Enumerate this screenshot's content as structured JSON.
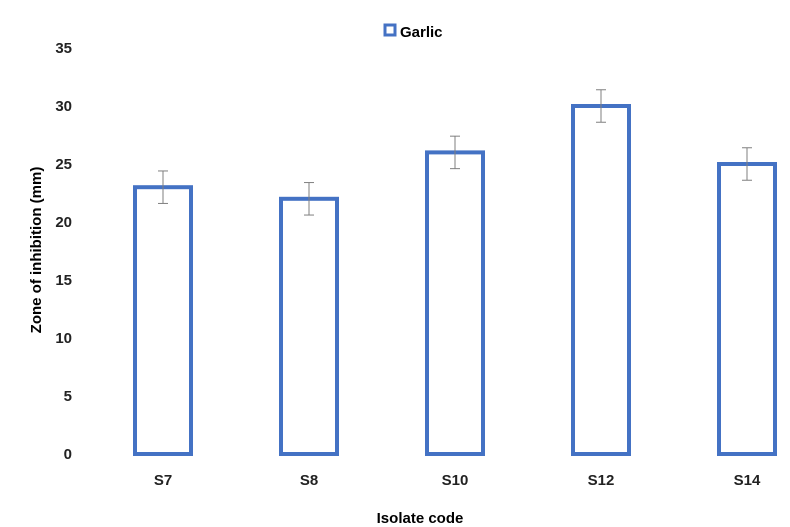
{
  "chart_data": {
    "type": "bar",
    "categories": [
      "S7",
      "S8",
      "S10",
      "S12",
      "S14"
    ],
    "series": [
      {
        "name": "Garlic",
        "values": [
          23,
          22,
          26,
          30,
          25
        ],
        "error": [
          1.4,
          1.4,
          1.4,
          1.4,
          1.4
        ]
      }
    ],
    "xlabel": "Isolate code",
    "ylabel": "Zone of inhibition (mm)",
    "ylim": [
      0,
      35
    ],
    "yticks": [
      0,
      5,
      10,
      15,
      20,
      25,
      30,
      35
    ],
    "grid": false,
    "legend_position": "top-center",
    "colors": {
      "bar_outline": "#4472C4",
      "bar_fill": "#FFFFFF",
      "error_bar": "#7F7F7F"
    }
  }
}
